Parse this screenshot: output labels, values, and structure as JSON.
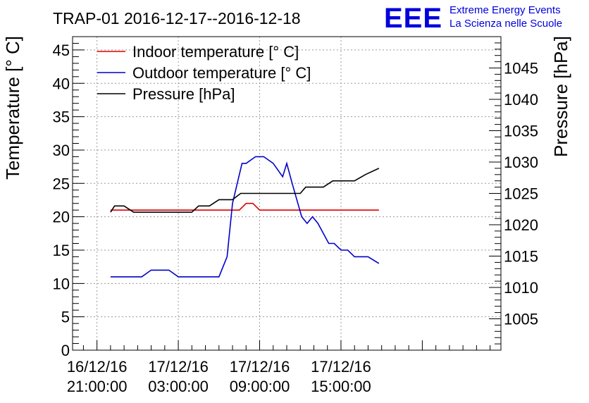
{
  "chart_data": {
    "type": "line",
    "title": "TRAP-01 2016-12-17--2016-12-18",
    "ylabel": "Temperature [° C]",
    "ylabel_right": "Pressure [hPa]",
    "xlabel": "",
    "ylim": [
      0,
      47
    ],
    "ylim_right": [
      1000,
      1050
    ],
    "yticks": [
      0,
      5,
      10,
      15,
      20,
      25,
      30,
      35,
      40,
      45
    ],
    "yticks_right": [
      1005,
      1010,
      1015,
      1020,
      1025,
      1030,
      1035,
      1040,
      1045
    ],
    "x_unit": "hours since 2016-12-16 21:00:00",
    "xlim": [
      -1.8,
      29.8
    ],
    "xticks": [
      {
        "x": 0,
        "line1": "16/12/16",
        "line2": "21:00:00"
      },
      {
        "x": 6,
        "line1": "17/12/16",
        "line2": "03:00:00"
      },
      {
        "x": 12,
        "line1": "17/12/16",
        "line2": "09:00:00"
      },
      {
        "x": 18,
        "line1": "17/12/16",
        "line2": "15:00:00"
      }
    ],
    "grid": true,
    "legend_position": "top-left",
    "series": [
      {
        "name": "Indoor temperature [° C]",
        "color": "#dd0000",
        "axis": "left",
        "points": [
          [
            1,
            21
          ],
          [
            10.5,
            21
          ],
          [
            11,
            22
          ],
          [
            11.5,
            22
          ],
          [
            12,
            21
          ],
          [
            20.8,
            21
          ]
        ]
      },
      {
        "name": "Outdoor temperature [° C]",
        "color": "#0000cc",
        "axis": "left",
        "points": [
          [
            1,
            11
          ],
          [
            3.3,
            11
          ],
          [
            4,
            12
          ],
          [
            5.3,
            12
          ],
          [
            6,
            11
          ],
          [
            9,
            11
          ],
          [
            9.6,
            14
          ],
          [
            10,
            22
          ],
          [
            10.7,
            28
          ],
          [
            11,
            28
          ],
          [
            11.7,
            29
          ],
          [
            12.3,
            29
          ],
          [
            13,
            28
          ],
          [
            13.7,
            26
          ],
          [
            14,
            28
          ],
          [
            14.4,
            25
          ],
          [
            15.1,
            20
          ],
          [
            15.5,
            19
          ],
          [
            15.9,
            20
          ],
          [
            16.3,
            19
          ],
          [
            17.1,
            16
          ],
          [
            17.5,
            16
          ],
          [
            18,
            15
          ],
          [
            18.5,
            15
          ],
          [
            19,
            14
          ],
          [
            20,
            14
          ],
          [
            20.8,
            13
          ]
        ]
      },
      {
        "name": "Pressure [hPa]",
        "color": "#000000",
        "axis": "right",
        "points": [
          [
            1,
            1022
          ],
          [
            1.3,
            1023
          ],
          [
            2,
            1023
          ],
          [
            2.7,
            1022
          ],
          [
            7,
            1022
          ],
          [
            7.5,
            1023
          ],
          [
            8.3,
            1023
          ],
          [
            9,
            1024
          ],
          [
            10,
            1024
          ],
          [
            10.6,
            1025
          ],
          [
            15,
            1025
          ],
          [
            15.4,
            1026
          ],
          [
            16.7,
            1026
          ],
          [
            17.4,
            1027
          ],
          [
            19,
            1027
          ],
          [
            19.8,
            1028
          ],
          [
            20.8,
            1029
          ]
        ]
      }
    ]
  },
  "logo": {
    "text": "EEE",
    "line1": "Extreme Energy Events",
    "line2": "La Scienza nelle Scuole"
  }
}
